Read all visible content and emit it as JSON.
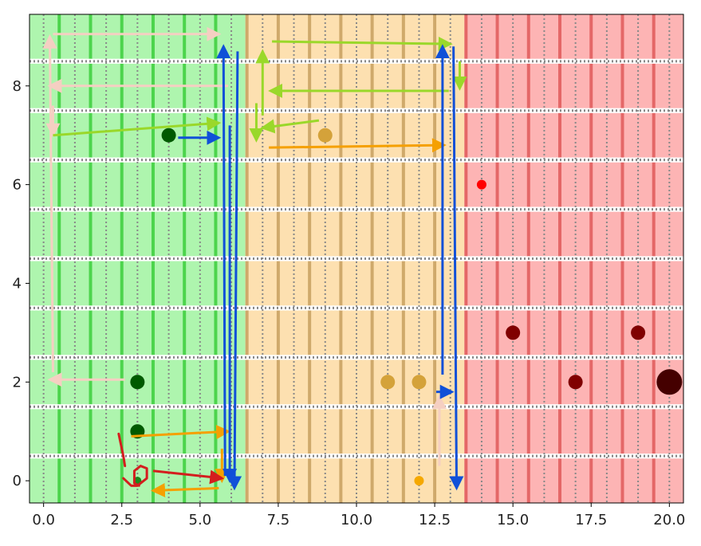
{
  "chart_data": {
    "type": "scatter",
    "title": "",
    "xlabel": "",
    "ylabel": "",
    "xlim": [
      -0.45,
      20.45
    ],
    "ylim": [
      -0.45,
      9.45
    ],
    "grid": true,
    "x_ticks": [
      0.0,
      2.5,
      5.0,
      7.5,
      10.0,
      12.5,
      15.0,
      17.5,
      20.0
    ],
    "x_tick_labels": [
      "0.0",
      "2.5",
      "5.0",
      "7.5",
      "10.0",
      "12.5",
      "15.0",
      "17.5",
      "20.0"
    ],
    "y_ticks": [
      0,
      2,
      4,
      6,
      8
    ],
    "y_tick_labels": [
      "0",
      "2",
      "4",
      "6",
      "8"
    ],
    "zones": [
      {
        "from": -0.45,
        "to": 6.45,
        "color": "#aef5ae",
        "divider": "#3ccf3c"
      },
      {
        "from": 6.45,
        "to": 13.45,
        "color": "#fde0b0",
        "divider": "#c8a060"
      },
      {
        "from": 13.45,
        "to": 20.45,
        "color": "#fdb4b4",
        "divider": "#e05a5a"
      }
    ],
    "points": [
      {
        "x": 3,
        "y": 0,
        "size": 5,
        "color": "#1b8a1b"
      },
      {
        "x": 3,
        "y": 1,
        "size": 9,
        "color": "#005a00"
      },
      {
        "x": 3,
        "y": 2,
        "size": 9,
        "color": "#005a00"
      },
      {
        "x": 4,
        "y": 7,
        "size": 9,
        "color": "#005a00"
      },
      {
        "x": 9,
        "y": 7,
        "size": 9,
        "color": "#d4a23a"
      },
      {
        "x": 11,
        "y": 2,
        "size": 9,
        "color": "#d4a23a"
      },
      {
        "x": 12,
        "y": 2,
        "size": 9,
        "color": "#d4a23a"
      },
      {
        "x": 12,
        "y": 0,
        "size": 6,
        "color": "#f5a800"
      },
      {
        "x": 14,
        "y": 6,
        "size": 6,
        "color": "#ff0000"
      },
      {
        "x": 15,
        "y": 3,
        "size": 9,
        "color": "#800000"
      },
      {
        "x": 17,
        "y": 2,
        "size": 9,
        "color": "#800000"
      },
      {
        "x": 19,
        "y": 3,
        "size": 9,
        "color": "#800000"
      },
      {
        "x": 20,
        "y": 2,
        "size": 16,
        "color": "#450000"
      }
    ],
    "arrows": [
      {
        "color": "#f5cfc2",
        "from": [
          0.3,
          2.2
        ],
        "to": [
          0.2,
          9.0
        ]
      },
      {
        "color": "#f5cfc2",
        "from": [
          2.6,
          2.05
        ],
        "to": [
          0.2,
          2.05
        ]
      },
      {
        "color": "#f5cfc2",
        "from": [
          0.3,
          9.05
        ],
        "to": [
          5.6,
          9.05
        ]
      },
      {
        "color": "#f5cfc2",
        "from": [
          5.9,
          8.0
        ],
        "to": [
          0.2,
          8.0
        ]
      },
      {
        "color": "#f5cfc2",
        "from": [
          0.3,
          7.6
        ],
        "to": [
          0.3,
          7.0
        ]
      },
      {
        "color": "#f5cfc2",
        "from": [
          12.65,
          0.3
        ],
        "to": [
          12.65,
          1.7
        ]
      },
      {
        "color": "#9ad82a",
        "from": [
          0.3,
          7.0
        ],
        "to": [
          5.6,
          7.25
        ]
      },
      {
        "color": "#9ad82a",
        "from": [
          7.0,
          7.4
        ],
        "to": [
          7.0,
          8.7
        ]
      },
      {
        "color": "#9ad82a",
        "from": [
          6.8,
          7.65
        ],
        "to": [
          6.8,
          6.9
        ]
      },
      {
        "color": "#9ad82a",
        "from": [
          8.8,
          7.3
        ],
        "to": [
          7.0,
          7.15
        ]
      },
      {
        "color": "#9ad82a",
        "from": [
          7.3,
          8.9
        ],
        "to": [
          13.0,
          8.85
        ]
      },
      {
        "color": "#9ad82a",
        "from": [
          12.95,
          7.9
        ],
        "to": [
          7.25,
          7.9
        ]
      },
      {
        "color": "#9ad82a",
        "from": [
          13.3,
          8.5
        ],
        "to": [
          13.3,
          7.95
        ]
      },
      {
        "color": "#f5a000",
        "from": [
          2.8,
          0.9
        ],
        "to": [
          5.9,
          1.0
        ]
      },
      {
        "color": "#f5a000",
        "from": [
          7.2,
          6.75
        ],
        "to": [
          12.8,
          6.8
        ]
      },
      {
        "color": "#f5a000",
        "from": [
          5.7,
          0.65
        ],
        "to": [
          5.7,
          0.0
        ]
      },
      {
        "color": "#f5a000",
        "from": [
          5.6,
          -0.15
        ],
        "to": [
          3.5,
          -0.2
        ]
      },
      {
        "color": "#1050d8",
        "from": [
          4.3,
          6.95
        ],
        "to": [
          5.6,
          6.95
        ]
      },
      {
        "color": "#1050d8",
        "from": [
          5.8,
          0.1
        ],
        "to": [
          5.75,
          8.8
        ]
      },
      {
        "color": "#1050d8",
        "from": [
          5.95,
          7.2
        ],
        "to": [
          5.95,
          0.0
        ]
      },
      {
        "color": "#1050d8",
        "from": [
          6.2,
          8.7
        ],
        "to": [
          6.1,
          -0.15
        ]
      },
      {
        "color": "#1050d8",
        "from": [
          12.75,
          2.15
        ],
        "to": [
          12.75,
          8.8
        ]
      },
      {
        "color": "#1050d8",
        "from": [
          13.1,
          8.8
        ],
        "to": [
          13.2,
          -0.15
        ]
      },
      {
        "color": "#1050d8",
        "from": [
          12.55,
          1.8
        ],
        "to": [
          13.05,
          1.8
        ]
      },
      {
        "color": "#d41e1e",
        "from": [
          3.5,
          0.2
        ],
        "to": [
          5.7,
          0.05
        ]
      }
    ],
    "annotations": [
      {
        "type": "scribble",
        "color": "#d41e1e",
        "points": [
          [
            2.4,
            0.95
          ],
          [
            2.55,
            0.5
          ],
          [
            2.6,
            0.3
          ]
        ]
      },
      {
        "type": "scribble",
        "color": "#d41e1e",
        "points": [
          [
            2.55,
            0.05
          ],
          [
            2.8,
            -0.1
          ],
          [
            3.0,
            -0.1
          ],
          [
            3.3,
            0.05
          ],
          [
            3.3,
            0.25
          ],
          [
            3.1,
            0.3
          ],
          [
            2.9,
            0.2
          ],
          [
            2.9,
            -0.05
          ],
          [
            3.05,
            -0.1
          ]
        ]
      }
    ]
  }
}
